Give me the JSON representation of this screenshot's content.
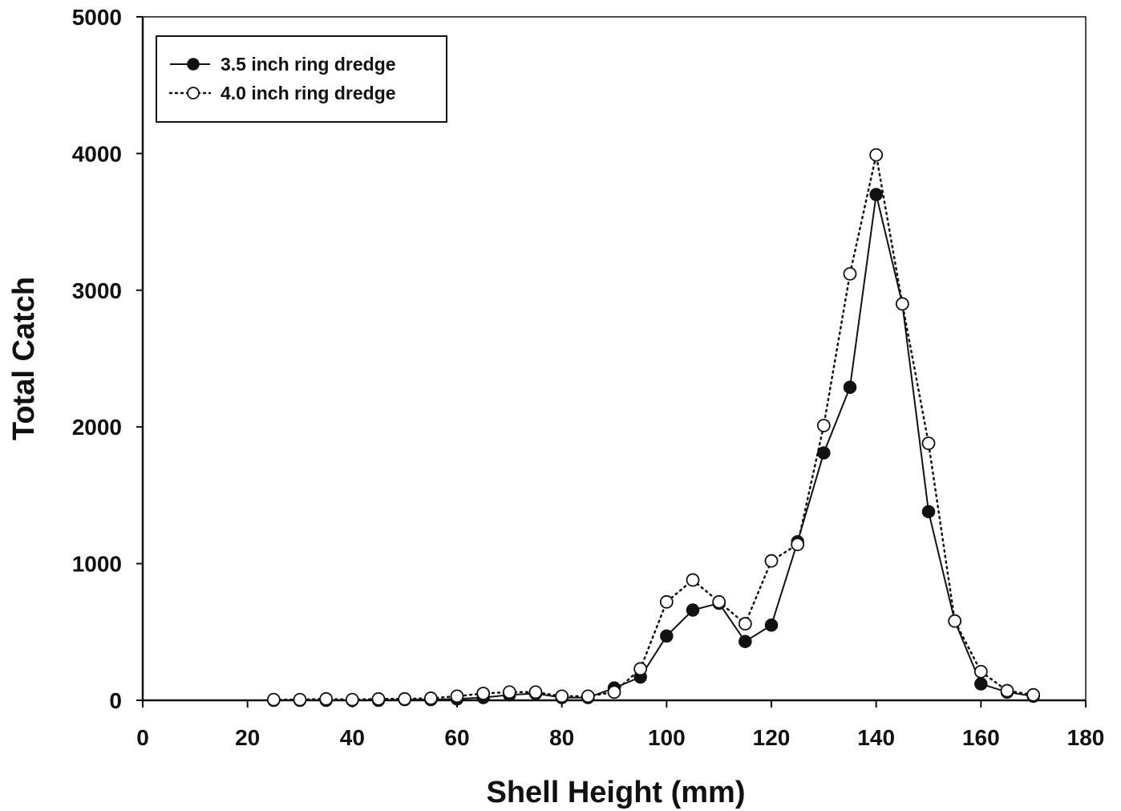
{
  "chart_data": {
    "type": "line",
    "xlabel": "Shell Height (mm)",
    "ylabel": "Total Catch",
    "xlim": [
      0,
      180
    ],
    "ylim": [
      0,
      5000
    ],
    "x_ticks": [
      0,
      20,
      40,
      60,
      80,
      100,
      120,
      140,
      160,
      180
    ],
    "y_ticks": [
      0,
      1000,
      2000,
      3000,
      4000,
      5000
    ],
    "grid": false,
    "legend_position": "top-left",
    "series": [
      {
        "name": "3.5 inch ring dredge",
        "marker": "filled-circle",
        "line_style": "solid",
        "color": "#111111",
        "x": [
          25,
          30,
          35,
          40,
          45,
          50,
          55,
          60,
          65,
          70,
          75,
          80,
          85,
          90,
          95,
          100,
          105,
          110,
          115,
          120,
          125,
          130,
          135,
          140,
          145,
          150,
          155,
          160,
          165,
          170
        ],
        "y": [
          0,
          0,
          0,
          0,
          0,
          5,
          5,
          10,
          20,
          40,
          50,
          20,
          20,
          90,
          170,
          470,
          660,
          710,
          430,
          550,
          1160,
          1810,
          2290,
          3700,
          2900,
          1380,
          580,
          120,
          60,
          30
        ]
      },
      {
        "name": "4.0 inch ring dredge",
        "marker": "open-circle",
        "line_style": "dotted",
        "color": "#111111",
        "x": [
          25,
          30,
          35,
          40,
          45,
          50,
          55,
          60,
          65,
          70,
          75,
          80,
          85,
          90,
          95,
          100,
          105,
          110,
          115,
          120,
          125,
          130,
          135,
          140,
          145,
          150,
          155,
          160,
          165,
          170
        ],
        "y": [
          5,
          5,
          10,
          5,
          10,
          10,
          15,
          30,
          50,
          60,
          60,
          30,
          30,
          60,
          230,
          720,
          880,
          720,
          560,
          1020,
          1140,
          2010,
          3120,
          3990,
          2900,
          1880,
          580,
          210,
          70,
          40
        ]
      }
    ]
  }
}
